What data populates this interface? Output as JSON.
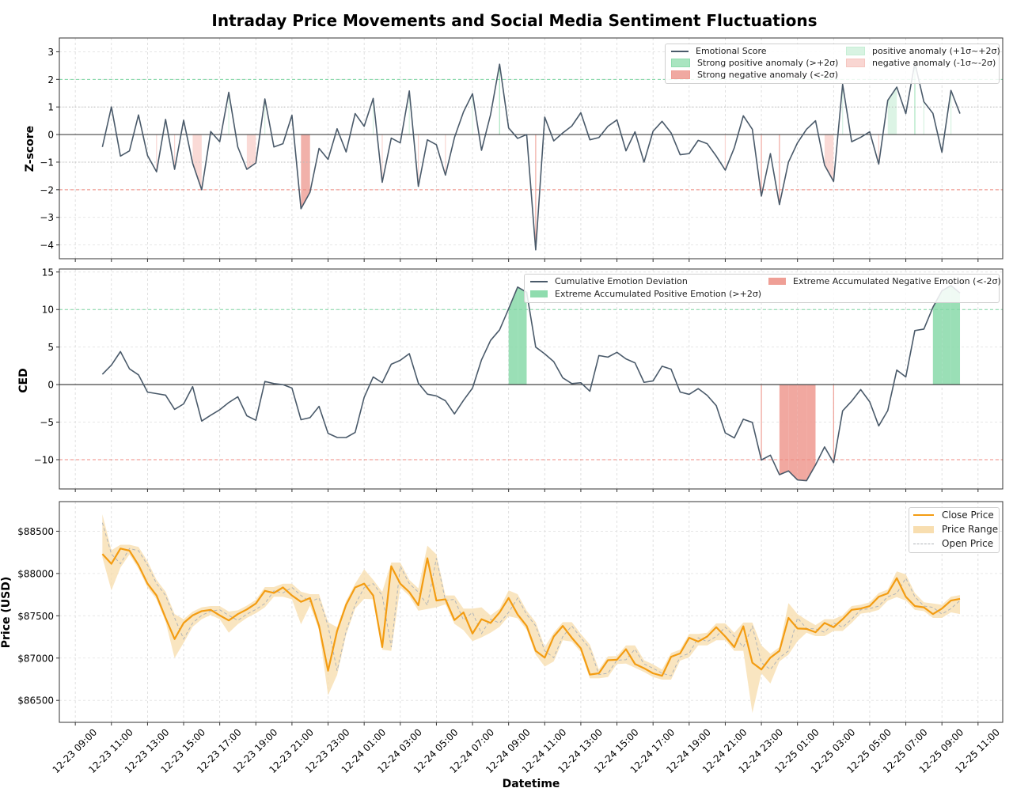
{
  "title": "Intraday Price Movements and Social Media Sentiment Fluctuations",
  "chart_data": {
    "type": "line",
    "x_label": "Datetime",
    "xlim": [
      "12-23 08:07",
      "12-25 12:22"
    ],
    "x_ticks": [
      "12-23 09:00",
      "12-23 11:00",
      "12-23 13:00",
      "12-23 15:00",
      "12-23 17:00",
      "12-23 19:00",
      "12-23 21:00",
      "12-23 23:00",
      "12-24 01:00",
      "12-24 03:00",
      "12-24 05:00",
      "12-24 07:00",
      "12-24 09:00",
      "12-24 11:00",
      "12-24 13:00",
      "12-24 15:00",
      "12-24 17:00",
      "12-24 19:00",
      "12-24 21:00",
      "12-24 23:00",
      "12-25 01:00",
      "12-25 03:00",
      "12-25 05:00",
      "12-25 07:00",
      "12-25 09:00",
      "12-25 11:00"
    ],
    "grid": true,
    "x": [
      "12-23 10:30",
      "12-23 11:00",
      "12-23 11:30",
      "12-23 12:00",
      "12-23 12:30",
      "12-23 13:00",
      "12-23 13:30",
      "12-23 14:00",
      "12-23 14:30",
      "12-23 15:00",
      "12-23 15:30",
      "12-23 16:00",
      "12-23 16:30",
      "12-23 17:00",
      "12-23 17:30",
      "12-23 18:00",
      "12-23 18:30",
      "12-23 19:00",
      "12-23 19:30",
      "12-23 20:00",
      "12-23 20:30",
      "12-23 21:00",
      "12-23 21:30",
      "12-23 22:00",
      "12-23 22:30",
      "12-23 23:00",
      "12-23 23:30",
      "12-24 00:00",
      "12-24 00:30",
      "12-24 01:00",
      "12-24 01:30",
      "12-24 02:00",
      "12-24 02:30",
      "12-24 03:00",
      "12-24 03:30",
      "12-24 04:00",
      "12-24 04:30",
      "12-24 05:00",
      "12-24 05:30",
      "12-24 06:00",
      "12-24 06:30",
      "12-24 07:00",
      "12-24 07:30",
      "12-24 08:00",
      "12-24 08:30",
      "12-24 09:00",
      "12-24 09:30",
      "12-24 10:00",
      "12-24 10:30",
      "12-24 11:00",
      "12-24 11:30",
      "12-24 12:00",
      "12-24 12:30",
      "12-24 13:00",
      "12-24 13:30",
      "12-24 14:00",
      "12-24 14:30",
      "12-24 15:00",
      "12-24 15:30",
      "12-24 16:00",
      "12-24 16:30",
      "12-24 17:00",
      "12-24 17:30",
      "12-24 18:00",
      "12-24 18:30",
      "12-24 19:00",
      "12-24 19:30",
      "12-24 20:00",
      "12-24 20:30",
      "12-24 21:00",
      "12-24 21:30",
      "12-24 22:00",
      "12-24 22:30",
      "12-24 23:00",
      "12-24 23:30",
      "12-25 00:00",
      "12-25 00:30",
      "12-25 01:00",
      "12-25 01:30",
      "12-25 02:00",
      "12-25 02:30",
      "12-25 03:00",
      "12-25 03:30",
      "12-25 04:00",
      "12-25 04:30",
      "12-25 05:00",
      "12-25 05:30",
      "12-25 06:00",
      "12-25 06:30",
      "12-25 07:00",
      "12-25 07:30",
      "12-25 08:00",
      "12-25 08:30",
      "12-25 09:00",
      "12-25 09:30",
      "12-25 10:00"
    ],
    "panels": [
      {
        "ylabel": "Z-score",
        "ylim": [
          -4.5,
          3.5
        ],
        "y_tick_values": [
          3,
          2,
          1,
          0,
          -1,
          -2,
          -3,
          -4
        ],
        "y_tick_labels": [
          "3",
          "2",
          "1",
          "0",
          "−1",
          "−2",
          "−3",
          "−4"
        ],
        "reference_lines": {
          "zero": 0,
          "upper_2sigma": 2,
          "lower_2sigma": -2,
          "upper_1sigma": 1,
          "lower_1sigma": -1
        },
        "legend": {
          "position": "top-right",
          "line": "Emotional Score",
          "strong_positive": "Strong positive anomaly (>+2σ)",
          "strong_negative": "Strong negative anomaly (<-2σ)",
          "positive": "positive anomaly (+1σ~+2σ)",
          "negative": "negative anomaly (-1σ~-2σ)"
        },
        "series": [
          {
            "name": "Emotional Score",
            "color": "#4a5a6a",
            "values": [
              -0.45,
              1.0,
              -0.78,
              -0.59,
              0.71,
              -0.76,
              -1.35,
              0.55,
              -1.26,
              0.52,
              -1.04,
              -2.0,
              0.11,
              -0.26,
              1.53,
              -0.45,
              -1.26,
              -1.03,
              1.29,
              -0.45,
              -0.33,
              0.7,
              -2.69,
              -2.09,
              -0.5,
              -0.9,
              0.21,
              -0.63,
              0.76,
              0.3,
              1.31,
              -1.73,
              -0.13,
              -0.3,
              1.58,
              -1.88,
              -0.19,
              -0.37,
              -1.47,
              -0.11,
              0.82,
              1.48,
              -0.57,
              0.72,
              2.55,
              0.24,
              -0.14,
              0.0,
              -4.18,
              0.63,
              -0.23,
              0.06,
              0.31,
              0.79,
              -0.19,
              -0.11,
              0.3,
              0.53,
              -0.59,
              0.1,
              -1.0,
              0.12,
              0.48,
              0.06,
              -0.73,
              -0.69,
              -0.21,
              -0.33,
              -0.78,
              -1.29,
              -0.48,
              0.68,
              0.19,
              -2.23,
              -0.69,
              -2.54,
              -1.0,
              -0.3,
              0.19,
              0.5,
              -1.11,
              -1.7,
              1.82,
              -0.26,
              -0.1,
              0.1,
              -1.07,
              1.24,
              1.72,
              0.76,
              2.6,
              1.19,
              0.77,
              -0.64,
              1.6,
              0.76
            ]
          }
        ],
        "colors": {
          "strong_positive": "#a9e5c0",
          "strong_negative": "#f0a9a1",
          "positive": "#d8f3e2",
          "negative": "#f9d6d2"
        }
      },
      {
        "ylabel": "CED",
        "ylim": [
          -13.9,
          15.4
        ],
        "y_tick_values": [
          15,
          10,
          5,
          0,
          -5,
          -10
        ],
        "y_tick_labels": [
          "15",
          "10",
          "5",
          "0",
          "−5",
          "−10"
        ],
        "reference_lines": {
          "zero": 0,
          "upper": 10,
          "lower": -10
        },
        "legend": {
          "position": "top",
          "line": "Cumulative Emotion Deviation",
          "positive": "Extreme Accumulated Positive Emotion (>+2σ)",
          "negative": "Extreme Accumulated Negative Emotion (<-2σ)"
        },
        "series": [
          {
            "name": "Cumulative Emotion Deviation",
            "color": "#4a5a6a",
            "values": [
              1.37,
              2.6,
              4.4,
              2.1,
              1.3,
              -1.0,
              -1.2,
              -1.4,
              -3.3,
              -2.57,
              -0.27,
              -4.86,
              -4.08,
              -3.35,
              -2.39,
              -1.62,
              -4.15,
              -4.75,
              0.42,
              0.14,
              0.0,
              -0.46,
              -4.68,
              -4.4,
              -2.9,
              -6.5,
              -7.04,
              -7.05,
              -6.37,
              -1.69,
              1.02,
              0.25,
              2.71,
              3.24,
              4.12,
              0.2,
              -1.27,
              -1.51,
              -2.15,
              -3.91,
              -2.1,
              -0.46,
              3.3,
              5.88,
              7.29,
              10.1,
              13.0,
              12.3,
              5.0,
              4.1,
              3.06,
              0.9,
              0.14,
              0.25,
              -0.88,
              3.87,
              3.66,
              4.3,
              3.42,
              2.9,
              0.3,
              0.49,
              2.45,
              2.05,
              -0.99,
              -1.3,
              -0.53,
              -1.44,
              -2.8,
              -6.44,
              -7.1,
              -4.61,
              -5.04,
              -10.04,
              -9.4,
              -12.0,
              -11.5,
              -12.7,
              -12.8,
              -10.7,
              -8.3,
              -10.4,
              -3.5,
              -2.2,
              -0.66,
              -2.29,
              -5.5,
              -3.45,
              1.94,
              1.02,
              7.2,
              7.4,
              10.3,
              12.5,
              13.2,
              12.2
            ]
          }
        ],
        "colors": {
          "positive": "#8fdcae",
          "negative": "#ef9f96"
        }
      },
      {
        "ylabel": "Price (USD)",
        "ylim": [
          86240,
          88850
        ],
        "y_tick_values": [
          88500,
          88000,
          87500,
          87000,
          86500
        ],
        "y_tick_labels": [
          "$88500",
          "$88000",
          "$87500",
          "$87000",
          "$86500"
        ],
        "legend": {
          "position": "top-right",
          "close": "Close Price",
          "range": "Price Range",
          "open": "Open Price"
        },
        "colors": {
          "close": "#f39c12",
          "range": "#f8deb0",
          "open": "#b0b4b8"
        },
        "series": [
          {
            "name": "Close Price",
            "values": [
              88230,
              88115,
              88295,
              88270,
              88100,
              87880,
              87740,
              87475,
              87225,
              87415,
              87505,
              87555,
              87570,
              87505,
              87445,
              87520,
              87575,
              87645,
              87795,
              87770,
              87835,
              87740,
              87665,
              87710,
              87380,
              86850,
              87320,
              87630,
              87835,
              87880,
              87740,
              87130,
              88085,
              87880,
              87780,
              87625,
              88180,
              87680,
              87695,
              87450,
              87540,
              87290,
              87460,
              87415,
              87540,
              87710,
              87515,
              87380,
              87085,
              87005,
              87255,
              87380,
              87240,
              87115,
              86805,
              86820,
              86975,
              86980,
              87105,
              86930,
              86880,
              86820,
              86790,
              87015,
              87055,
              87240,
              87195,
              87255,
              87365,
              87255,
              87130,
              87375,
              86945,
              86865,
              87005,
              87085,
              87475,
              87350,
              87345,
              87305,
              87415,
              87365,
              87460,
              87570,
              87585,
              87615,
              87725,
              87765,
              87945,
              87725,
              87615,
              87600,
              87520,
              87585,
              87680,
              87700
            ]
          },
          {
            "name": "Open Price",
            "values": [
              88600,
              88230,
              88115,
              88295,
              88270,
              88100,
              87880,
              87740,
              87475,
              87225,
              87415,
              87505,
              87555,
              87570,
              87505,
              87445,
              87520,
              87575,
              87645,
              87795,
              87770,
              87835,
              87740,
              87665,
              87710,
              87380,
              86850,
              87320,
              87630,
              87835,
              87880,
              87740,
              87130,
              88085,
              87880,
              87780,
              87625,
              88180,
              87680,
              87695,
              87450,
              87540,
              87290,
              87460,
              87415,
              87540,
              87710,
              87515,
              87380,
              87085,
              87005,
              87255,
              87380,
              87240,
              87115,
              86805,
              86820,
              86975,
              86980,
              87105,
              86930,
              86880,
              86820,
              86790,
              87015,
              87055,
              87240,
              87195,
              87255,
              87365,
              87255,
              87130,
              87375,
              86945,
              86865,
              87005,
              87085,
              87475,
              87350,
              87345,
              87305,
              87415,
              87365,
              87460,
              87570,
              87585,
              87615,
              87725,
              87765,
              87945,
              87725,
              87615,
              87600,
              87520,
              87585,
              87680
            ]
          },
          {
            "name": "High",
            "values": [
              88700,
              88275,
              88340,
              88340,
              88315,
              88145,
              87925,
              87785,
              87520,
              87460,
              87550,
              87600,
              87615,
              87615,
              87550,
              87565,
              87620,
              87690,
              87840,
              87840,
              87880,
              87880,
              87785,
              87755,
              87755,
              87425,
              87365,
              87675,
              87880,
              88050,
              87925,
              87785,
              88130,
              88130,
              87925,
              87825,
              88330,
              88225,
              87740,
              87740,
              87585,
              87585,
              87600,
              87505,
              87585,
              87800,
              87755,
              87560,
              87425,
              87130,
              87300,
              87425,
              87425,
              87285,
              87160,
              86865,
              87020,
              87025,
              87150,
              87150,
              86975,
              86925,
              86865,
              87060,
              87100,
              87285,
              87285,
              87300,
              87410,
              87410,
              87300,
              87420,
              87420,
              87150,
              87050,
              87130,
              87650,
              87520,
              87450,
              87390,
              87460,
              87460,
              87505,
              87615,
              87630,
              87660,
              87770,
              87810,
              88025,
              87990,
              87770,
              87660,
              87645,
              87630,
              87725,
              87745
            ]
          },
          {
            "name": "Low",
            "values": [
              88190,
              87800,
              88070,
              88225,
              88055,
              87835,
              87695,
              87430,
              87000,
              87180,
              87370,
              87460,
              87510,
              87460,
              87300,
              87400,
              87475,
              87530,
              87600,
              87725,
              87725,
              87695,
              87400,
              87620,
              87335,
              86560,
              86800,
              87275,
              87585,
              87700,
              87695,
              87100,
              87085,
              87835,
              87735,
              87560,
              87580,
              87600,
              87635,
              87405,
              87330,
              87200,
              87245,
              87300,
              87370,
              87495,
              87470,
              87335,
              87040,
              86900,
              86960,
              87210,
              87195,
              87070,
              86760,
              86760,
              86775,
              86930,
              86935,
              86885,
              86835,
              86775,
              86745,
              86745,
              86970,
              87010,
              87150,
              87150,
              87210,
              87210,
              87085,
              87085,
              86350,
              86820,
              86700,
              86960,
              87040,
              87200,
              87300,
              87260,
              87260,
              87320,
              87320,
              87415,
              87525,
              87540,
              87570,
              87680,
              87720,
              87680,
              87570,
              87555,
              87475,
              87475,
              87540,
              87520
            ]
          }
        ]
      }
    ]
  }
}
